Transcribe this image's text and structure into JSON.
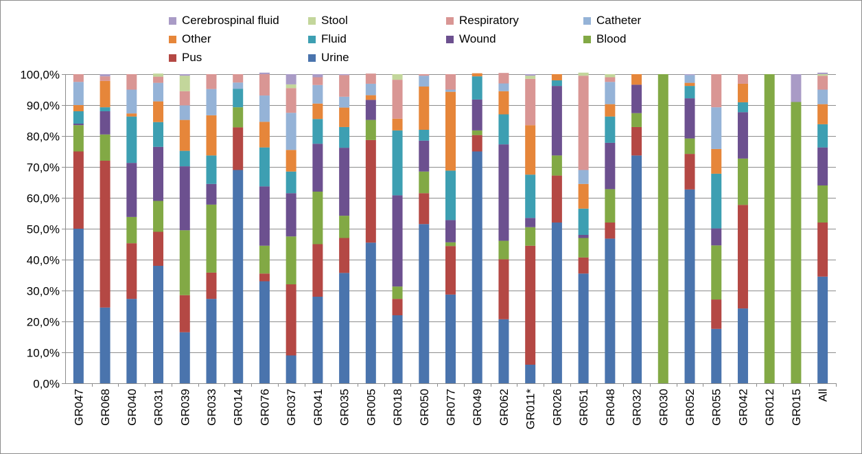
{
  "chart_data": {
    "type": "bar",
    "stacked": true,
    "percent": true,
    "ylim": [
      0,
      100
    ],
    "yticks": [
      "0,0%",
      "10,0%",
      "20,0%",
      "30,0%",
      "40,0%",
      "50,0%",
      "60,0%",
      "70,0%",
      "80,0%",
      "90,0%",
      "100,0%"
    ],
    "grid": true,
    "legend_position": "top",
    "categories": [
      "GR047",
      "GR068",
      "GR040",
      "GR031",
      "GR039",
      "GR033",
      "GR014",
      "GR076",
      "GR037",
      "GR041",
      "GR035",
      "GR005",
      "GR018",
      "GR050",
      "GR077",
      "GR049",
      "GR062",
      "GR011*",
      "GR026",
      "GR051",
      "GR048",
      "GR032",
      "GR030",
      "GR052",
      "GR055",
      "GR042",
      "GR012",
      "GR015",
      "All"
    ],
    "legend": [
      {
        "name": "Cerebrospinal fluid",
        "color": "#a99bc6"
      },
      {
        "name": "Stool",
        "color": "#c3d69b"
      },
      {
        "name": "Respiratory",
        "color": "#d99694"
      },
      {
        "name": "Catheter",
        "color": "#95b3d7"
      },
      {
        "name": "Other",
        "color": "#e6863a"
      },
      {
        "name": "Fluid",
        "color": "#3d9fb2"
      },
      {
        "name": "Wound",
        "color": "#6c508f"
      },
      {
        "name": "Blood",
        "color": "#82a945"
      },
      {
        "name": "Pus",
        "color": "#b44844"
      },
      {
        "name": "Urine",
        "color": "#4a74ad"
      }
    ],
    "series": [
      {
        "name": "Urine",
        "color": "#4a74ad",
        "values": [
          50,
          24.5,
          27.3,
          38,
          16.5,
          27.3,
          69,
          33,
          9,
          28,
          35.7,
          45.5,
          22,
          51.5,
          28.7,
          75,
          20.7,
          6,
          52,
          35.5,
          46.8,
          73.7,
          0,
          62.7,
          17.6,
          24.2,
          0,
          0,
          34.5
        ]
      },
      {
        "name": "Pus",
        "color": "#b44844",
        "values": [
          25,
          47.5,
          18,
          11,
          12,
          8.5,
          13.8,
          2.5,
          23,
          17,
          11.3,
          33.2,
          5.3,
          10,
          15.7,
          5.3,
          19.4,
          38.5,
          15.2,
          5.2,
          5.2,
          9.2,
          0,
          11.5,
          9.5,
          33.5,
          0,
          0,
          17.5
        ]
      },
      {
        "name": "Blood",
        "color": "#82a945",
        "values": [
          8.5,
          8.5,
          8.5,
          10,
          21,
          22,
          6.5,
          9,
          15.5,
          17,
          7.2,
          6.5,
          4,
          7,
          1.2,
          1.5,
          6,
          6,
          6.5,
          6.3,
          10.8,
          4.5,
          100,
          5,
          17.5,
          15,
          100,
          91,
          12
        ]
      },
      {
        "name": "Wound",
        "color": "#6c508f",
        "values": [
          0.5,
          7.5,
          17.5,
          17.5,
          20.7,
          6.7,
          0,
          19.2,
          14,
          15.5,
          22,
          6.5,
          29.5,
          10,
          7.2,
          10,
          31.2,
          3,
          22.5,
          1,
          15,
          9.2,
          0,
          13,
          5.5,
          15,
          0,
          0,
          12.3
        ]
      },
      {
        "name": "Fluid",
        "color": "#3d9fb2",
        "values": [
          4,
          1.3,
          15,
          8,
          5,
          9.2,
          6,
          12.6,
          7,
          8,
          6.7,
          0,
          21,
          3.5,
          16,
          7.5,
          9.7,
          14,
          1.8,
          8.5,
          8.5,
          0,
          0,
          4,
          17.7,
          3.2,
          0,
          0,
          7.5
        ]
      },
      {
        "name": "Other",
        "color": "#e6863a",
        "values": [
          2,
          8.5,
          1,
          6.7,
          10,
          13,
          0,
          8.3,
          7,
          5,
          6.3,
          1.5,
          3.8,
          14,
          25.5,
          1,
          7.5,
          16,
          2,
          8,
          4,
          3.4,
          0,
          1,
          8,
          6,
          0,
          0,
          6.5
        ]
      },
      {
        "name": "Catheter",
        "color": "#95b3d7",
        "values": [
          7.5,
          0,
          7.7,
          6,
          4.7,
          8.5,
          2,
          8.5,
          12,
          6,
          3.5,
          3.7,
          0,
          3.5,
          0.7,
          0,
          2.5,
          0,
          0,
          4.5,
          7.2,
          0,
          0,
          2.5,
          13.5,
          0,
          0,
          0,
          4.7
        ]
      },
      {
        "name": "Respiratory",
        "color": "#d99694",
        "values": [
          2.5,
          1.5,
          5,
          2,
          4.6,
          4.8,
          2.7,
          6.9,
          8,
          2.5,
          7,
          3.3,
          12.6,
          0.5,
          5,
          0,
          3.4,
          15,
          0,
          30.5,
          1.5,
          0,
          0,
          0,
          10.7,
          3.1,
          0,
          0,
          4.5
        ]
      },
      {
        "name": "Stool",
        "color": "#c3d69b",
        "values": [
          0,
          0,
          0,
          1,
          5,
          0,
          0,
          0,
          1.2,
          0,
          0,
          0,
          1.8,
          0,
          0,
          0,
          0,
          1,
          0,
          1,
          1,
          0,
          0,
          0,
          0,
          0,
          0,
          0,
          0.5
        ]
      },
      {
        "name": "Cerebrospinal fluid",
        "color": "#a99bc6",
        "values": [
          0,
          0.7,
          0,
          0,
          0.5,
          0,
          0,
          0.5,
          3.3,
          1,
          0.3,
          0,
          0,
          0,
          0,
          0,
          0,
          0.5,
          0,
          0,
          0,
          0,
          0,
          0.3,
          0,
          0,
          0,
          9,
          0.5
        ]
      }
    ]
  }
}
